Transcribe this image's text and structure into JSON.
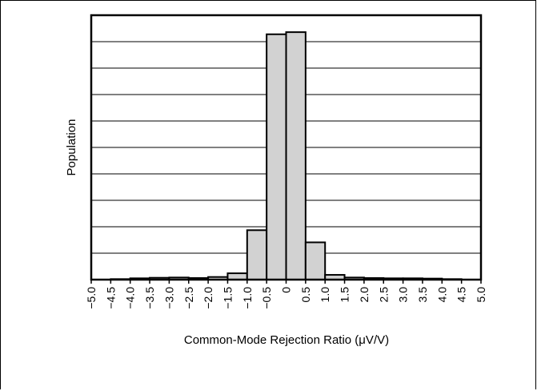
{
  "chart_data": {
    "type": "bar",
    "title": "",
    "xlabel": "Common-Mode Rejection Ratio (μV/V)",
    "ylabel": "Population",
    "xlim": [
      -5.0,
      5.0
    ],
    "ylim": [
      0,
      100
    ],
    "x_tick_labels": [
      "−5.0",
      "−4.5",
      "−4.0",
      "−3.5",
      "−3.0",
      "−2.5",
      "−2.0",
      "−1.5",
      "−1.0",
      "−0.5",
      "0",
      "0.5",
      "1.0",
      "1.5",
      "2.0",
      "2.5",
      "3.0",
      "3.5",
      "4.0",
      "4.5",
      "5.0"
    ],
    "bin_edges": [
      -5.0,
      -4.5,
      -4.0,
      -3.5,
      -3.0,
      -2.5,
      -2.0,
      -1.5,
      -1.0,
      -0.5,
      0,
      0.5,
      1.0,
      1.5,
      2.0,
      2.5,
      3.0,
      3.5,
      4.0,
      4.5,
      5.0
    ],
    "values": [
      0,
      0.2,
      0.5,
      0.7,
      0.8,
      0.6,
      1.0,
      2.4,
      18.7,
      92.8,
      93.6,
      14.1,
      1.8,
      0.8,
      0.6,
      0.5,
      0.5,
      0.4,
      0.2,
      0
    ],
    "gridlines_y": 9,
    "grid": true,
    "bar_color": "#d2d2d2"
  }
}
